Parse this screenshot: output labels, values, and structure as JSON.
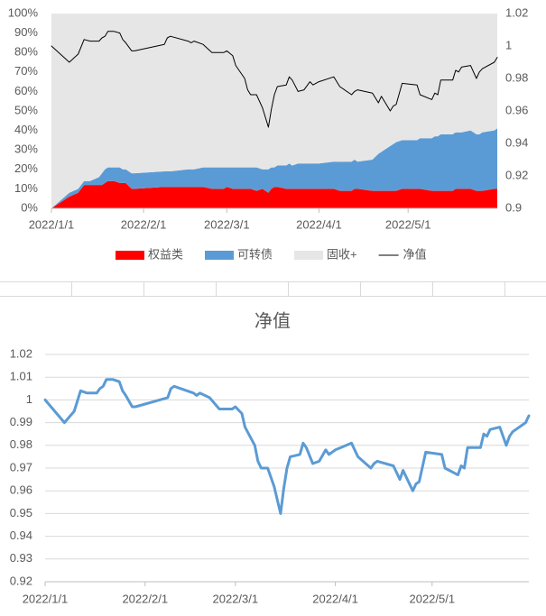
{
  "chart_data": [
    {
      "type": "area",
      "stacked": true,
      "x": [
        "2022/1/1",
        "2022/1/7",
        "2022/1/10",
        "2022/1/12",
        "2022/1/14",
        "2022/1/17",
        "2022/1/18",
        "2022/1/19",
        "2022/1/20",
        "2022/1/22",
        "2022/1/24",
        "2022/1/25",
        "2022/1/26",
        "2022/1/28",
        "2022/1/29",
        "2022/2/8",
        "2022/2/9",
        "2022/2/10",
        "2022/2/16",
        "2022/2/17",
        "2022/2/18",
        "2022/2/21",
        "2022/2/24",
        "2022/2/25",
        "2022/2/28",
        "2022/3/1",
        "2022/3/3",
        "2022/3/4",
        "2022/3/7",
        "2022/3/8",
        "2022/3/9",
        "2022/3/11",
        "2022/3/13",
        "2022/3/15",
        "2022/3/16",
        "2022/3/17",
        "2022/3/18",
        "2022/3/21",
        "2022/3/22",
        "2022/3/23",
        "2022/3/25",
        "2022/3/27",
        "2022/3/29",
        "2022/3/30",
        "2022/4/1",
        "2022/4/6",
        "2022/4/8",
        "2022/4/12",
        "2022/4/13",
        "2022/4/14",
        "2022/4/19",
        "2022/4/21",
        "2022/4/22",
        "2022/4/25",
        "2022/4/26",
        "2022/4/27",
        "2022/4/29",
        "2022/5/4",
        "2022/5/5",
        "2022/5/9",
        "2022/5/10",
        "2022/5/11",
        "2022/5/12",
        "2022/5/16",
        "2022/5/17",
        "2022/5/18",
        "2022/5/19",
        "2022/5/22",
        "2022/5/24",
        "2022/5/25",
        "2022/5/26",
        "2022/5/30",
        "2022/5/31"
      ],
      "series": [
        {
          "name": "权益类",
          "color": "#ff0000",
          "values": [
            0,
            6,
            8,
            12,
            12,
            12,
            12,
            13,
            14,
            14,
            13,
            13,
            13,
            10,
            10,
            11,
            11,
            11,
            11,
            11,
            11,
            11,
            10,
            10,
            10,
            11,
            10,
            10,
            10,
            10,
            10,
            9,
            10,
            8,
            10,
            11,
            11,
            10,
            10,
            10,
            10,
            10,
            10,
            10,
            10,
            10,
            9,
            9,
            10,
            10,
            9,
            9,
            9,
            9,
            9,
            9,
            10,
            10,
            10,
            9,
            9,
            9,
            9,
            9,
            10,
            10,
            10,
            10,
            9,
            9,
            9,
            10,
            10
          ]
        },
        {
          "name": "可转债",
          "color": "#5b9bd5",
          "values": [
            0,
            2,
            2,
            2,
            2,
            4,
            6,
            7,
            7,
            7,
            8,
            7,
            7,
            8,
            8,
            8,
            8,
            8,
            9,
            9,
            9,
            10,
            11,
            11,
            11,
            10,
            11,
            11,
            11,
            11,
            11,
            12,
            10,
            12,
            11,
            10,
            11,
            12,
            13,
            12,
            13,
            13,
            13,
            13,
            13,
            14,
            15,
            15,
            15,
            14,
            16,
            19,
            20,
            23,
            24,
            25,
            25,
            25,
            26,
            27,
            28,
            28,
            29,
            29,
            29,
            29,
            29,
            30,
            29,
            29,
            30,
            30,
            31
          ]
        },
        {
          "name": "固收+",
          "color": "#e7e6e6",
          "values": [
            100,
            92,
            90,
            86,
            86,
            84,
            82,
            80,
            79,
            79,
            79,
            80,
            80,
            82,
            82,
            81,
            81,
            81,
            80,
            80,
            80,
            79,
            79,
            79,
            79,
            79,
            79,
            79,
            79,
            79,
            79,
            79,
            80,
            80,
            79,
            79,
            78,
            78,
            77,
            78,
            77,
            77,
            77,
            77,
            77,
            76,
            76,
            76,
            75,
            76,
            75,
            72,
            71,
            68,
            67,
            66,
            65,
            65,
            64,
            64,
            63,
            63,
            62,
            62,
            61,
            61,
            61,
            60,
            62,
            62,
            61,
            60,
            59
          ]
        },
        {
          "name": "净值",
          "color": "#000000",
          "type": "line",
          "axis": "y2",
          "values": [
            1.0,
            0.99,
            0.995,
            1.004,
            1.003,
            1.003,
            1.005,
            1.006,
            1.009,
            1.009,
            1.008,
            1.004,
            1.002,
            0.997,
            0.997,
            1.001,
            1.005,
            1.006,
            1.003,
            1.002,
            1.003,
            1.001,
            0.996,
            0.996,
            0.996,
            0.997,
            0.994,
            0.988,
            0.98,
            0.973,
            0.97,
            0.97,
            0.962,
            0.95,
            0.961,
            0.97,
            0.975,
            0.976,
            0.981,
            0.979,
            0.972,
            0.973,
            0.978,
            0.976,
            0.978,
            0.981,
            0.975,
            0.97,
            0.972,
            0.973,
            0.971,
            0.965,
            0.969,
            0.96,
            0.963,
            0.964,
            0.977,
            0.976,
            0.97,
            0.967,
            0.971,
            0.97,
            0.979,
            0.979,
            0.985,
            0.984,
            0.987,
            0.988,
            0.98,
            0.984,
            0.986,
            0.99,
            0.993
          ]
        }
      ],
      "xlim": [
        "2022/1/1",
        "2022/5/31"
      ],
      "xticks": [
        "2022/1/1",
        "2022/2/1",
        "2022/3/1",
        "2022/4/1",
        "2022/5/1"
      ],
      "ylim": [
        0,
        100
      ],
      "yticks": [
        {
          "value": 0,
          "label": "0%"
        },
        {
          "value": 10,
          "label": "10%"
        },
        {
          "value": 20,
          "label": "20%"
        },
        {
          "value": 30,
          "label": "30%"
        },
        {
          "value": 40,
          "label": "40%"
        },
        {
          "value": 50,
          "label": "50%"
        },
        {
          "value": 60,
          "label": "60%"
        },
        {
          "value": 70,
          "label": "70%"
        },
        {
          "value": 80,
          "label": "80%"
        },
        {
          "value": 90,
          "label": "90%"
        },
        {
          "value": 100,
          "label": "100%"
        }
      ],
      "y2lim": [
        0.9,
        1.02
      ],
      "y2ticks": [
        0.9,
        0.92,
        0.94,
        0.96,
        0.98,
        1,
        1.02
      ],
      "grid": false,
      "legend": "bottom"
    },
    {
      "type": "line",
      "title": "净值",
      "x": [
        "2022/1/1",
        "2022/1/7",
        "2022/1/10",
        "2022/1/12",
        "2022/1/14",
        "2022/1/17",
        "2022/1/18",
        "2022/1/19",
        "2022/1/20",
        "2022/1/22",
        "2022/1/24",
        "2022/1/25",
        "2022/1/26",
        "2022/1/28",
        "2022/1/29",
        "2022/2/8",
        "2022/2/9",
        "2022/2/10",
        "2022/2/16",
        "2022/2/17",
        "2022/2/18",
        "2022/2/21",
        "2022/2/24",
        "2022/2/25",
        "2022/2/28",
        "2022/3/1",
        "2022/3/3",
        "2022/3/4",
        "2022/3/7",
        "2022/3/8",
        "2022/3/9",
        "2022/3/11",
        "2022/3/13",
        "2022/3/15",
        "2022/3/16",
        "2022/3/17",
        "2022/3/18",
        "2022/3/21",
        "2022/3/22",
        "2022/3/23",
        "2022/3/25",
        "2022/3/27",
        "2022/3/29",
        "2022/3/30",
        "2022/4/1",
        "2022/4/6",
        "2022/4/8",
        "2022/4/12",
        "2022/4/13",
        "2022/4/14",
        "2022/4/19",
        "2022/4/21",
        "2022/4/22",
        "2022/4/25",
        "2022/4/26",
        "2022/4/27",
        "2022/4/29",
        "2022/5/4",
        "2022/5/5",
        "2022/5/9",
        "2022/5/10",
        "2022/5/11",
        "2022/5/12",
        "2022/5/16",
        "2022/5/17",
        "2022/5/18",
        "2022/5/19",
        "2022/5/22",
        "2022/5/24",
        "2022/5/25",
        "2022/5/26",
        "2022/5/30",
        "2022/5/31"
      ],
      "series": [
        {
          "name": "净值",
          "color": "#5b9bd5",
          "values": [
            1.0,
            0.99,
            0.995,
            1.004,
            1.003,
            1.003,
            1.005,
            1.006,
            1.009,
            1.009,
            1.008,
            1.004,
            1.002,
            0.997,
            0.997,
            1.001,
            1.005,
            1.006,
            1.003,
            1.002,
            1.003,
            1.001,
            0.996,
            0.996,
            0.996,
            0.997,
            0.994,
            0.988,
            0.98,
            0.973,
            0.97,
            0.97,
            0.962,
            0.95,
            0.961,
            0.97,
            0.975,
            0.976,
            0.981,
            0.979,
            0.972,
            0.973,
            0.978,
            0.976,
            0.978,
            0.981,
            0.975,
            0.97,
            0.972,
            0.973,
            0.971,
            0.965,
            0.969,
            0.96,
            0.963,
            0.964,
            0.977,
            0.976,
            0.97,
            0.967,
            0.971,
            0.97,
            0.979,
            0.979,
            0.985,
            0.984,
            0.987,
            0.988,
            0.98,
            0.984,
            0.986,
            0.99,
            0.993
          ]
        }
      ],
      "xlim": [
        "2022/1/1",
        "2022/5/31"
      ],
      "xticks": [
        "2022/1/1",
        "2022/2/1",
        "2022/3/1",
        "2022/4/1",
        "2022/5/1"
      ],
      "ylim": [
        0.92,
        1.02
      ],
      "yticks": [
        0.92,
        0.93,
        0.94,
        0.95,
        0.96,
        0.97,
        0.98,
        0.99,
        1,
        1.01,
        1.02
      ],
      "grid": true
    }
  ]
}
